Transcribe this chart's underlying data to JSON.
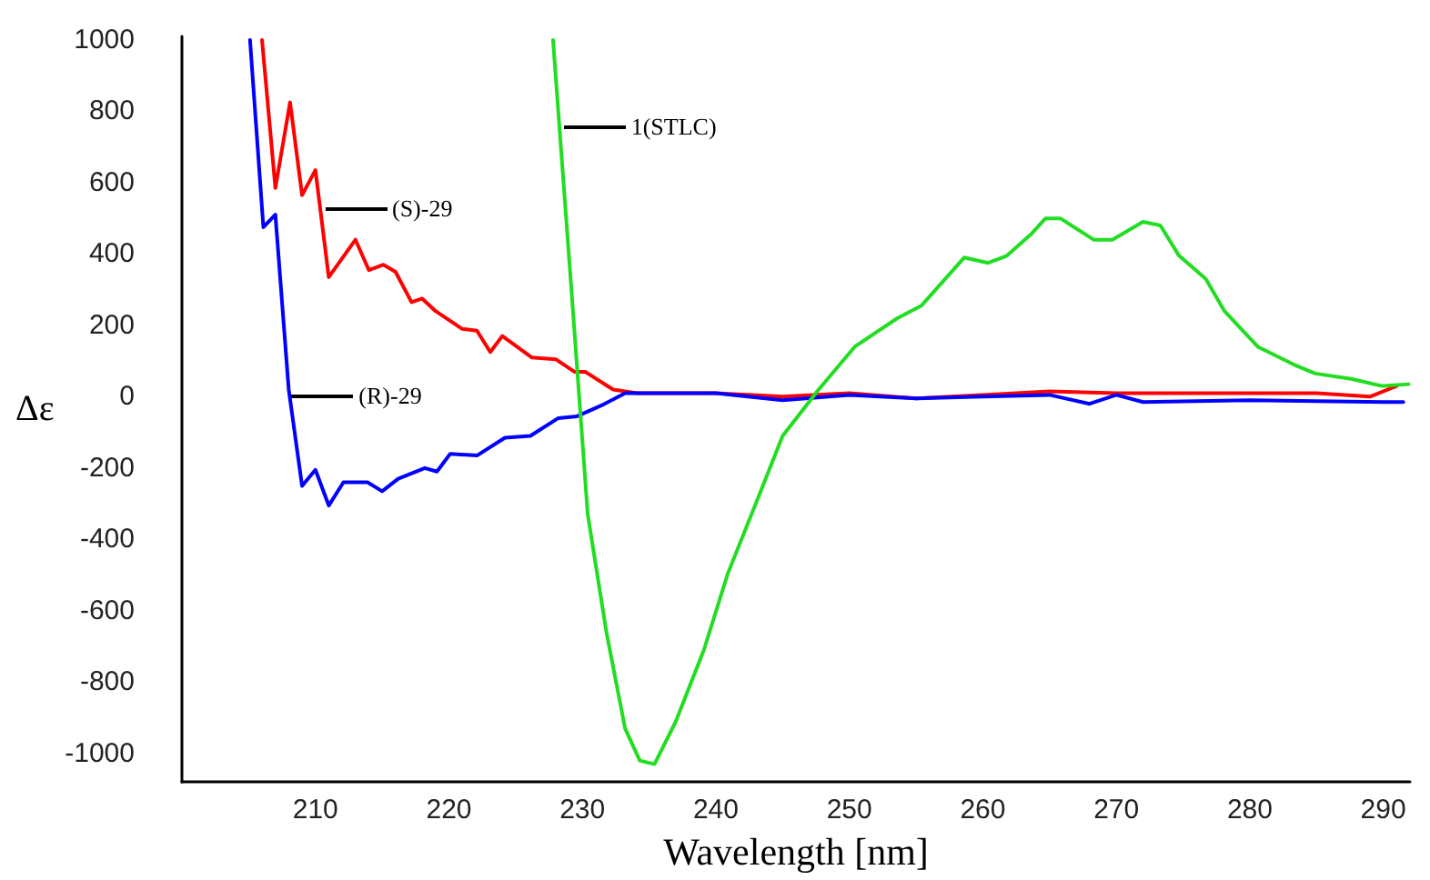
{
  "chart_data": {
    "type": "line",
    "xlabel": "Wavelength [nm]",
    "ylabel": "Δε",
    "xlim": [
      200,
      292
    ],
    "xticks": [
      210,
      220,
      230,
      240,
      250,
      260,
      270,
      280,
      290
    ],
    "ylim": [
      -1080,
      1010
    ],
    "yticks": [
      -1000,
      -800,
      -600,
      -400,
      -200,
      0,
      200,
      400,
      600,
      800,
      1000
    ],
    "grid": false,
    "marker": "none",
    "line_style": "solid",
    "series": [
      {
        "color": "#ff0000",
        "x": [
          206.0,
          207.0,
          208.1,
          209.0,
          210.0,
          211.0,
          213.0,
          214.0,
          215.1,
          216.0,
          217.2,
          218.0,
          219.0,
          221.0,
          222.1,
          223.1,
          224.0,
          226.2,
          228.0,
          229.4,
          230.2,
          232.3,
          234.1,
          240,
          245,
          250,
          255,
          260,
          265,
          270,
          275,
          280,
          285,
          289,
          291
        ],
        "values": [
          1000,
          585,
          825,
          565,
          635,
          335,
          440,
          355,
          370,
          350,
          265,
          275,
          240,
          190,
          185,
          125,
          170,
          110,
          105,
          70,
          70,
          20,
          10,
          10,
          0,
          10,
          -5,
          5,
          15,
          10,
          10,
          10,
          10,
          0,
          30
        ]
      },
      {
        "color": "#0000ff",
        "x": [
          205.1,
          206.1,
          207.0,
          208.0,
          209.0,
          210.0,
          211.0,
          212.1,
          213.9,
          215.0,
          216.2,
          218.2,
          219.1,
          220.1,
          222.1,
          224.2,
          226.1,
          228.2,
          229.6,
          231.4,
          233.2,
          240,
          245,
          250,
          255,
          260,
          265,
          268,
          270,
          272,
          280,
          290,
          291.5
        ],
        "values": [
          1000,
          475,
          510,
          20,
          -250,
          -205,
          -305,
          -240,
          -240,
          -265,
          -230,
          -200,
          -210,
          -160,
          -165,
          -115,
          -110,
          -60,
          -55,
          -25,
          10,
          10,
          -10,
          5,
          -5,
          0,
          5,
          -20,
          5,
          -15,
          -10,
          -15,
          -15
        ]
      },
      {
        "color": "#22dd22",
        "x": [
          227.8,
          229.1,
          230.4,
          231.8,
          233.2,
          234.3,
          235.4,
          237.0,
          239.1,
          240.9,
          243.2,
          245.0,
          247.7,
          250.4,
          253.6,
          255.4,
          258.6,
          260.4,
          261.8,
          263.6,
          264.7,
          265.8,
          268.3,
          269.7,
          272.0,
          273.3,
          274.7,
          276.7,
          278.1,
          280.6,
          283.3,
          284.9,
          287.6,
          289.9,
          291.9
        ],
        "values": [
          1000,
          340,
          -330,
          -660,
          -930,
          -1020,
          -1030,
          -910,
          -710,
          -495,
          -280,
          -110,
          20,
          140,
          220,
          255,
          390,
          375,
          395,
          455,
          500,
          500,
          440,
          440,
          490,
          480,
          395,
          330,
          240,
          140,
          90,
          65,
          50,
          30,
          35
        ]
      }
    ],
    "annotations": [
      {
        "text": "(S)-29",
        "x": 210.7,
        "y": 525
      },
      {
        "text": "(R)-29",
        "x": 208.2,
        "y": 0
      },
      {
        "text": "1(STLC)",
        "x": 228.6,
        "y": 755
      }
    ]
  }
}
